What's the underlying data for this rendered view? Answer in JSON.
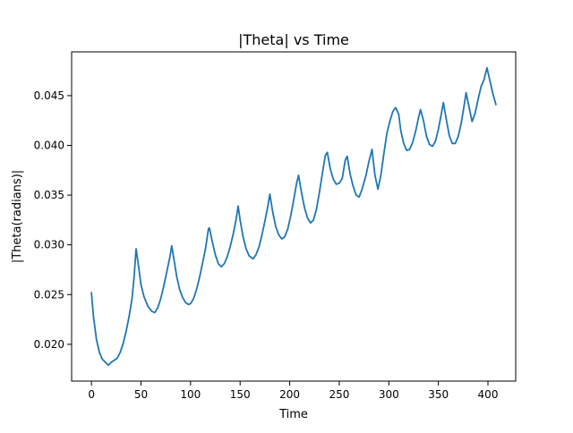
{
  "chart_data": {
    "type": "line",
    "title": "|Theta| vs Time",
    "xlabel": "Time",
    "ylabel": "|Theta(radians)|",
    "xlim": [
      -20,
      428
    ],
    "ylim": [
      0.0163,
      0.0494
    ],
    "xticks": [
      0,
      50,
      100,
      150,
      200,
      250,
      300,
      350,
      400
    ],
    "xtick_labels": [
      "0",
      "50",
      "100",
      "150",
      "200",
      "250",
      "300",
      "350",
      "400"
    ],
    "yticks": [
      0.02,
      0.025,
      0.03,
      0.035,
      0.04,
      0.045
    ],
    "ytick_labels": [
      "0.020",
      "0.025",
      "0.030",
      "0.035",
      "0.040",
      "0.045"
    ],
    "grid": false,
    "legend": "none",
    "series_color": "#1f77b4",
    "series": [
      {
        "x": [
          0,
          2,
          5,
          8,
          11,
          14,
          17,
          20,
          23,
          26,
          29,
          32,
          35,
          38,
          41,
          43,
          45,
          47,
          50,
          53,
          57,
          61,
          64,
          67,
          70,
          73,
          76,
          79,
          81,
          83,
          86,
          89,
          92,
          95,
          98,
          100,
          103,
          106,
          109,
          112,
          115,
          118,
          119,
          122,
          125,
          128,
          131,
          134,
          137,
          140,
          143,
          146,
          148,
          150,
          153,
          156,
          159,
          163,
          166,
          169,
          172,
          175,
          178,
          180,
          183,
          186,
          189,
          192,
          195,
          198,
          201,
          204,
          207,
          209,
          212,
          215,
          218,
          221,
          224,
          227,
          230,
          233,
          236,
          238,
          241,
          244,
          247,
          250,
          253,
          256,
          258,
          261,
          264,
          267,
          270,
          273,
          277,
          280,
          283,
          286,
          289,
          292,
          295,
          298,
          301,
          304,
          307,
          310,
          312,
          315,
          318,
          321,
          324,
          327,
          330,
          332,
          335,
          338,
          341,
          344,
          347,
          350,
          353,
          355,
          358,
          361,
          364,
          367,
          370,
          373,
          376,
          378,
          381,
          384,
          387,
          390,
          393,
          396,
          399,
          402,
          405,
          408
        ],
        "y": [
          0.0252,
          0.0228,
          0.0205,
          0.0192,
          0.0185,
          0.0182,
          0.0179,
          0.0182,
          0.0184,
          0.0186,
          0.0192,
          0.0201,
          0.0213,
          0.0228,
          0.0246,
          0.0268,
          0.0296,
          0.0282,
          0.026,
          0.0248,
          0.0238,
          0.0233,
          0.0232,
          0.0237,
          0.0246,
          0.0259,
          0.0273,
          0.0287,
          0.0299,
          0.0287,
          0.0268,
          0.0255,
          0.0247,
          0.0242,
          0.024,
          0.0241,
          0.0246,
          0.0255,
          0.0267,
          0.0281,
          0.0296,
          0.0316,
          0.0317,
          0.0303,
          0.029,
          0.0281,
          0.0278,
          0.0281,
          0.0288,
          0.0298,
          0.0311,
          0.0326,
          0.0339,
          0.0325,
          0.0308,
          0.0296,
          0.0289,
          0.0286,
          0.029,
          0.0298,
          0.031,
          0.0324,
          0.0339,
          0.0351,
          0.0332,
          0.0318,
          0.031,
          0.0306,
          0.0308,
          0.0316,
          0.0329,
          0.0345,
          0.0362,
          0.037,
          0.0352,
          0.0337,
          0.0327,
          0.0322,
          0.0325,
          0.0336,
          0.0353,
          0.0372,
          0.039,
          0.0393,
          0.0376,
          0.0366,
          0.0361,
          0.0362,
          0.0367,
          0.0385,
          0.0389,
          0.0371,
          0.0359,
          0.035,
          0.0348,
          0.0356,
          0.037,
          0.0384,
          0.0396,
          0.037,
          0.0356,
          0.037,
          0.0392,
          0.0412,
          0.0424,
          0.0434,
          0.0438,
          0.0431,
          0.0415,
          0.0402,
          0.0395,
          0.0396,
          0.0403,
          0.0414,
          0.0428,
          0.0436,
          0.0425,
          0.0409,
          0.0401,
          0.0399,
          0.0404,
          0.0416,
          0.0432,
          0.0443,
          0.0426,
          0.041,
          0.0402,
          0.0402,
          0.0409,
          0.0422,
          0.044,
          0.0453,
          0.0438,
          0.0424,
          0.0432,
          0.0446,
          0.0459,
          0.0466,
          0.0478,
          0.0465,
          0.0452,
          0.0441
        ]
      }
    ]
  }
}
